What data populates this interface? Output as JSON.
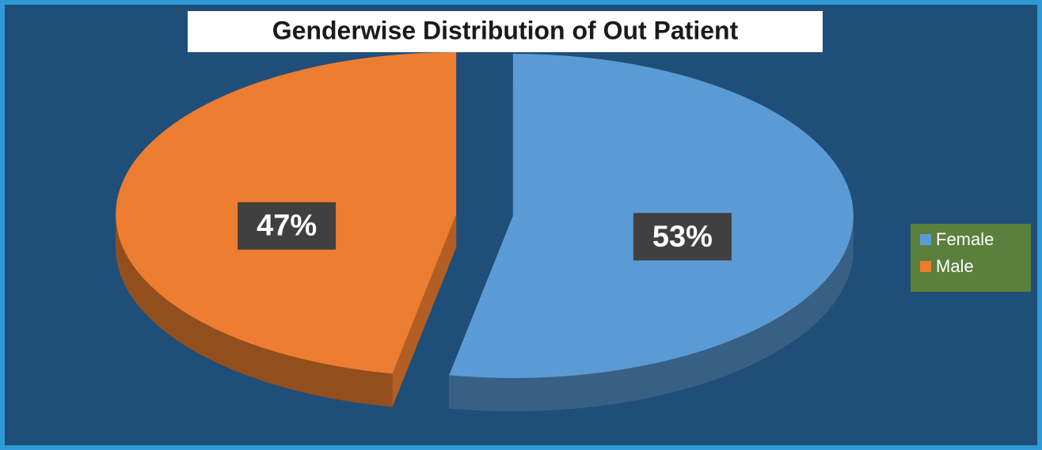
{
  "chart_data": {
    "type": "pie",
    "title": "Genderwise Distribution of Out Patient",
    "categories": [
      "Female",
      "Male"
    ],
    "values": [
      53,
      47
    ],
    "value_labels": [
      "53%",
      "47%"
    ],
    "colors": [
      "#5b9bd5",
      "#ed7d31"
    ],
    "legend": "right"
  }
}
